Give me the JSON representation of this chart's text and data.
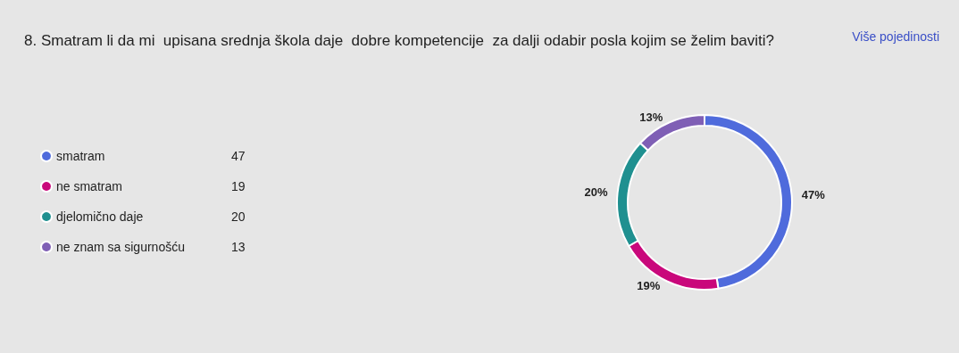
{
  "chart_data": {
    "type": "donut",
    "title": "8. Smatram li da mi  upisana srednja škola daje  dobre kompetencije  za dalji odabir posla kojim se želim baviti?",
    "categories": [
      "smatram",
      "ne smatram",
      "djelomično daje",
      "ne znam sa sigurnošću"
    ],
    "values": [
      47,
      19,
      20,
      13
    ],
    "colors": [
      "#4f6bdc",
      "#c9087b",
      "#1f9090",
      "#7f5fb5"
    ],
    "value_labels": [
      "47%",
      "19%",
      "20%",
      "13%"
    ],
    "legend": "left",
    "annotations": [
      "Više pojedinosti",
      {
        "text": "47",
        "x": "smatram"
      },
      {
        "text": "19",
        "x": "ne smatram"
      },
      {
        "text": "20",
        "x": "djelomično daje"
      },
      {
        "text": "13",
        "x": "ne znam sa sigurnošću"
      }
    ]
  }
}
